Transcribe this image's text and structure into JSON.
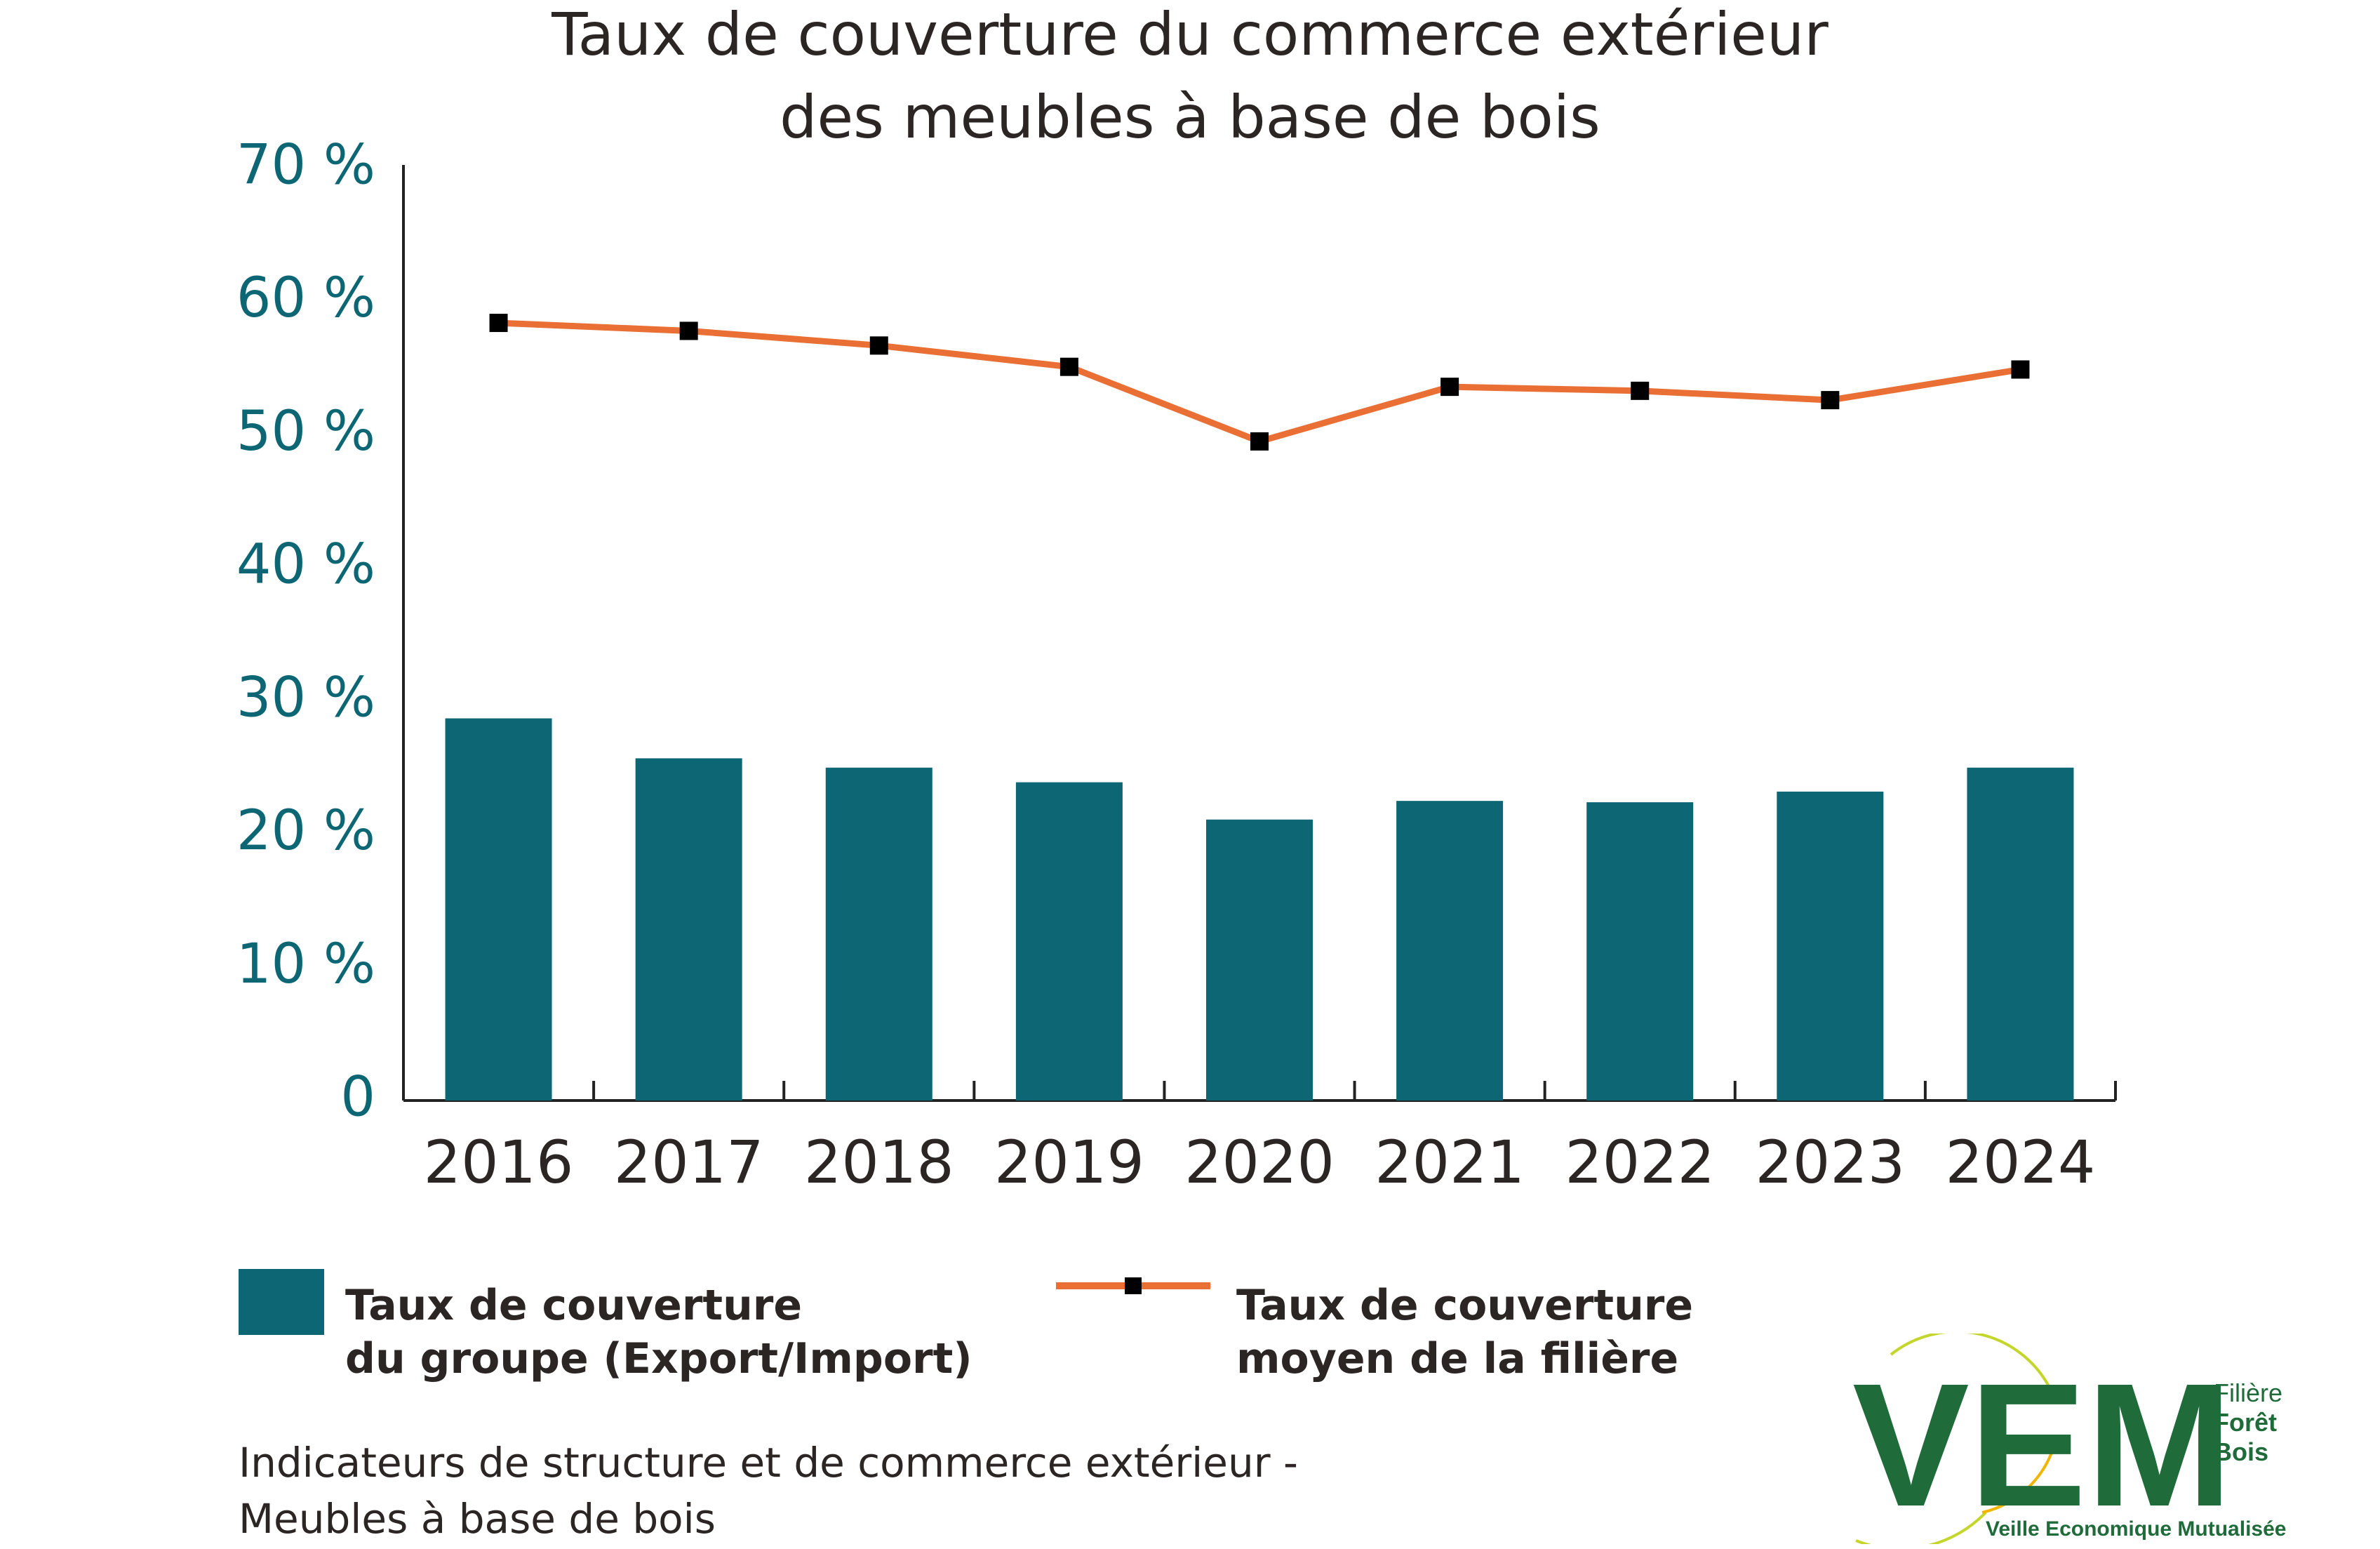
{
  "title": [
    "Taux de couverture du commerce extérieur",
    "des meubles à base de bois"
  ],
  "chart_data": {
    "type": "bar",
    "categories": [
      "2016",
      "2017",
      "2018",
      "2019",
      "2020",
      "2021",
      "2022",
      "2023",
      "2024"
    ],
    "y_tick_labels": [
      "0",
      "10 %",
      "20 %",
      "30 %",
      "40 %",
      "50 %",
      "60 %",
      "70 %"
    ],
    "ylim": [
      0,
      70
    ],
    "grid": false,
    "series": [
      {
        "name": "Taux de couverture du groupe (Export/Import)",
        "type": "bar",
        "color": "#0d6673",
        "values": [
          28.7,
          25.7,
          25.0,
          23.9,
          21.1,
          22.5,
          22.4,
          23.2,
          25.0
        ]
      },
      {
        "name": "Taux de couverture moyen de la filière",
        "type": "line",
        "color": "#ea6f35",
        "marker_color": "#000000",
        "values": [
          58.4,
          57.8,
          56.7,
          55.1,
          49.5,
          53.6,
          53.3,
          52.6,
          54.9
        ]
      }
    ],
    "legend_position": "bottom"
  },
  "legend": {
    "bar_label": [
      "Taux de couverture",
      "du groupe (Export/Import)"
    ],
    "line_label": [
      "Taux de couverture",
      "moyen de la filière"
    ]
  },
  "source": [
    "Indicateurs de structure et de commerce extérieur -",
    "Meubles à base de bois"
  ],
  "logo": {
    "letters": "VEM",
    "words": [
      "Filière",
      "Forêt",
      "Bois"
    ],
    "tagline": "Veille Economique Mutualisée",
    "color": "#1f6b3a"
  }
}
